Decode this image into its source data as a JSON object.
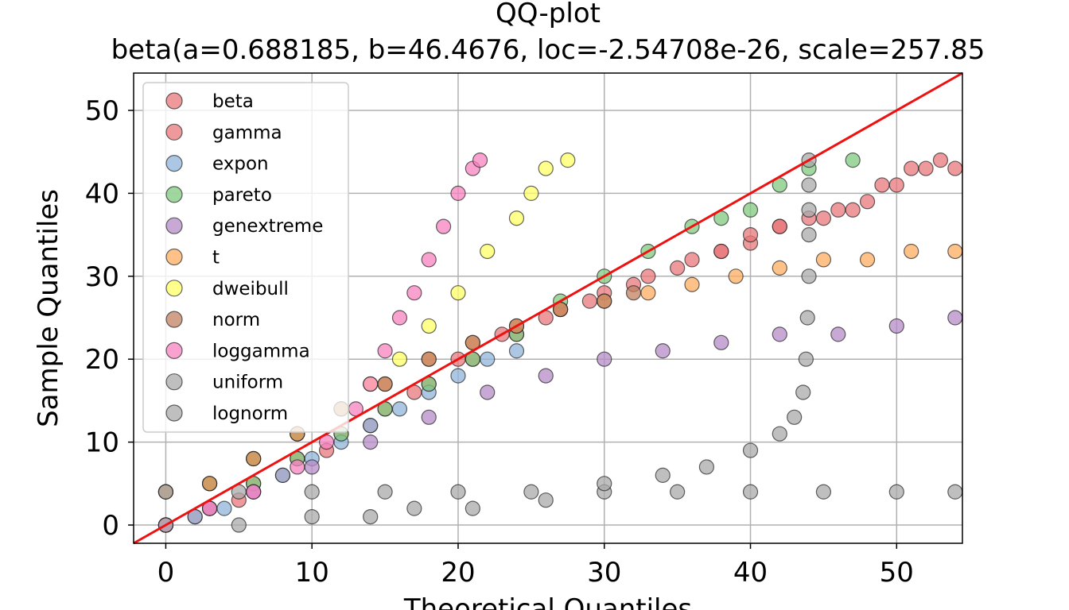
{
  "chart_data": {
    "type": "scatter",
    "title": "QQ-plot",
    "subtitle": "beta(a=0.688185, b=46.4676, loc=-2.54708e-26, scale=257.85",
    "xlabel": "Theoretical Quantiles",
    "ylabel": "Sample Quantiles",
    "xlim": [
      -2.2,
      54.5
    ],
    "ylim": [
      -2.2,
      54.5
    ],
    "xticks": [
      "0",
      "10",
      "20",
      "30",
      "40",
      "50"
    ],
    "yticks": [
      "0",
      "10",
      "20",
      "30",
      "40",
      "50"
    ],
    "grid": true,
    "legend_position": "upper-left",
    "reference_line": {
      "x": [
        -2.2,
        54.5
      ],
      "y": [
        -2.2,
        54.5
      ],
      "color": "#ee1111"
    },
    "series": [
      {
        "name": "beta",
        "color": "#e8777b",
        "points": [
          [
            0,
            0
          ],
          [
            2,
            1
          ],
          [
            5,
            3
          ],
          [
            8,
            6
          ],
          [
            11,
            9
          ],
          [
            14,
            12
          ],
          [
            17,
            16
          ],
          [
            20,
            20
          ],
          [
            23,
            23
          ],
          [
            26,
            25
          ],
          [
            29,
            27
          ],
          [
            32,
            29
          ],
          [
            35,
            31
          ],
          [
            38,
            33
          ],
          [
            40,
            34
          ],
          [
            42,
            36
          ],
          [
            44,
            37
          ],
          [
            46,
            38
          ],
          [
            48,
            39
          ],
          [
            49,
            41
          ],
          [
            51,
            43
          ],
          [
            53,
            44
          ],
          [
            54,
            43
          ]
        ]
      },
      {
        "name": "gamma",
        "color": "#e8777b",
        "points": [
          [
            0,
            0
          ],
          [
            3,
            2
          ],
          [
            6,
            5
          ],
          [
            9,
            8
          ],
          [
            12,
            11
          ],
          [
            15,
            14
          ],
          [
            18,
            17
          ],
          [
            21,
            20
          ],
          [
            24,
            23
          ],
          [
            27,
            26
          ],
          [
            30,
            28
          ],
          [
            33,
            30
          ],
          [
            36,
            32
          ],
          [
            38,
            33
          ],
          [
            40,
            35
          ],
          [
            42,
            36
          ],
          [
            45,
            37
          ],
          [
            47,
            38
          ],
          [
            50,
            41
          ],
          [
            52,
            43
          ]
        ]
      },
      {
        "name": "expon",
        "color": "#8fb4d9",
        "points": [
          [
            0,
            0
          ],
          [
            2,
            1
          ],
          [
            4,
            2
          ],
          [
            6,
            4
          ],
          [
            8,
            6
          ],
          [
            10,
            8
          ],
          [
            12,
            10
          ],
          [
            14,
            12
          ],
          [
            16,
            14
          ],
          [
            18,
            16
          ],
          [
            20,
            18
          ],
          [
            22,
            20
          ],
          [
            24,
            21
          ]
        ]
      },
      {
        "name": "pareto",
        "color": "#7fc97f",
        "points": [
          [
            0,
            0
          ],
          [
            3,
            2
          ],
          [
            6,
            5
          ],
          [
            9,
            8
          ],
          [
            12,
            11
          ],
          [
            15,
            14
          ],
          [
            18,
            17
          ],
          [
            21,
            20
          ],
          [
            24,
            23
          ],
          [
            27,
            27
          ],
          [
            30,
            30
          ],
          [
            33,
            33
          ],
          [
            36,
            36
          ],
          [
            38,
            37
          ],
          [
            40,
            38
          ],
          [
            42,
            41
          ],
          [
            44,
            43
          ],
          [
            47,
            44
          ]
        ]
      },
      {
        "name": "genextreme",
        "color": "#b58bc7",
        "points": [
          [
            0,
            0
          ],
          [
            3,
            2
          ],
          [
            6,
            4
          ],
          [
            10,
            7
          ],
          [
            14,
            10
          ],
          [
            18,
            13
          ],
          [
            22,
            16
          ],
          [
            26,
            18
          ],
          [
            30,
            20
          ],
          [
            34,
            21
          ],
          [
            38,
            22
          ],
          [
            42,
            23
          ],
          [
            46,
            23
          ],
          [
            50,
            24
          ],
          [
            54,
            25
          ]
        ]
      },
      {
        "name": "t",
        "color": "#fdae61",
        "points": [
          [
            0,
            4
          ],
          [
            3,
            5
          ],
          [
            6,
            8
          ],
          [
            9,
            11
          ],
          [
            12,
            14
          ],
          [
            15,
            17
          ],
          [
            18,
            20
          ],
          [
            21,
            22
          ],
          [
            24,
            24
          ],
          [
            27,
            26
          ],
          [
            30,
            27
          ],
          [
            33,
            28
          ],
          [
            36,
            29
          ],
          [
            39,
            30
          ],
          [
            42,
            31
          ],
          [
            45,
            32
          ],
          [
            48,
            32
          ],
          [
            51,
            33
          ],
          [
            54,
            33
          ]
        ]
      },
      {
        "name": "dweibull",
        "color": "#ffff66",
        "points": [
          [
            0,
            4
          ],
          [
            3,
            5
          ],
          [
            6,
            8
          ],
          [
            9,
            11
          ],
          [
            12,
            14
          ],
          [
            14,
            17
          ],
          [
            16,
            20
          ],
          [
            18,
            24
          ],
          [
            20,
            28
          ],
          [
            22,
            33
          ],
          [
            24,
            37
          ],
          [
            25,
            40
          ],
          [
            26,
            43
          ],
          [
            27.5,
            44
          ]
        ]
      },
      {
        "name": "norm",
        "color": "#c08060",
        "points": [
          [
            0,
            4
          ],
          [
            3,
            5
          ],
          [
            6,
            8
          ],
          [
            9,
            11
          ],
          [
            12,
            14
          ],
          [
            15,
            17
          ],
          [
            18,
            20
          ],
          [
            21,
            22
          ],
          [
            24,
            24
          ],
          [
            27,
            26
          ],
          [
            30,
            27
          ],
          [
            32,
            28
          ]
        ]
      },
      {
        "name": "loggamma",
        "color": "#f781bf",
        "points": [
          [
            0,
            0
          ],
          [
            3,
            2
          ],
          [
            6,
            4
          ],
          [
            9,
            7
          ],
          [
            11,
            10
          ],
          [
            13,
            14
          ],
          [
            14,
            17
          ],
          [
            15,
            21
          ],
          [
            16,
            25
          ],
          [
            17,
            28
          ],
          [
            18,
            32
          ],
          [
            19,
            36
          ],
          [
            20,
            40
          ],
          [
            21,
            43
          ],
          [
            21.5,
            44
          ]
        ]
      },
      {
        "name": "uniform",
        "color": "#aaaaaa",
        "points": [
          [
            0,
            4
          ],
          [
            5,
            4
          ],
          [
            10,
            4
          ],
          [
            15,
            4
          ],
          [
            20,
            4
          ],
          [
            25,
            4
          ],
          [
            30,
            4
          ],
          [
            35,
            4
          ],
          [
            40,
            4
          ],
          [
            45,
            4
          ],
          [
            50,
            4
          ],
          [
            54,
            4
          ]
        ]
      },
      {
        "name": "lognorm",
        "color": "#aaaaaa",
        "points": [
          [
            0,
            0
          ],
          [
            5,
            0
          ],
          [
            10,
            1
          ],
          [
            14,
            1
          ],
          [
            17,
            2
          ],
          [
            21,
            2
          ],
          [
            26,
            3
          ],
          [
            30,
            5
          ],
          [
            34,
            6
          ],
          [
            37,
            7
          ],
          [
            40,
            9
          ],
          [
            42,
            11
          ],
          [
            43,
            13
          ],
          [
            43.6,
            16
          ],
          [
            43.8,
            20
          ],
          [
            43.9,
            25
          ],
          [
            44,
            30
          ],
          [
            44,
            35
          ],
          [
            44,
            38
          ],
          [
            44,
            41
          ],
          [
            44,
            44
          ]
        ]
      }
    ]
  }
}
